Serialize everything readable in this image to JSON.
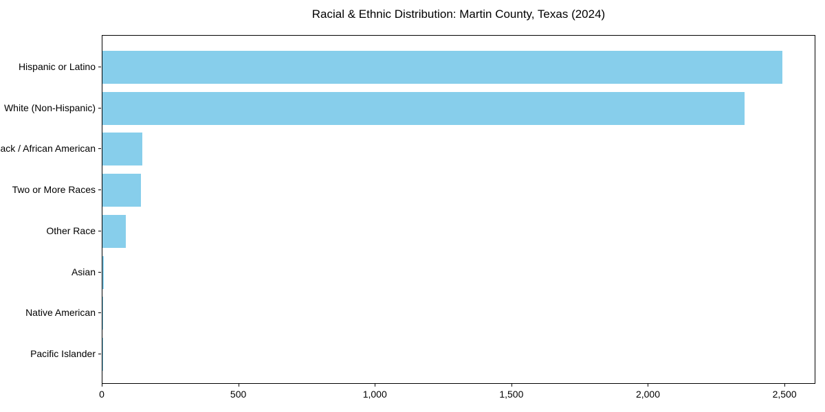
{
  "chart_data": {
    "type": "bar",
    "orientation": "horizontal",
    "title": "Racial & Ethnic Distribution: Martin County, Texas (2024)",
    "categories": [
      "Hispanic or Latino",
      "White (Non-Hispanic)",
      "Black / African American",
      "Two or More Races",
      "Other Race",
      "Asian",
      "Native American",
      "Pacific Islander"
    ],
    "values": [
      2490,
      2350,
      145,
      140,
      85,
      5,
      3,
      1
    ],
    "xlabel": "",
    "ylabel": "",
    "xlim": [
      0,
      2613
    ],
    "xticks": [
      0,
      500,
      1000,
      1500,
      2000,
      2500
    ],
    "xtick_labels": [
      "0",
      "500",
      "1,000",
      "1,500",
      "2,000",
      "2,500"
    ],
    "bar_color": "#87CEEB",
    "grid": false,
    "legend": null,
    "background_color": "#ffffff",
    "spine_color": "#000000"
  }
}
